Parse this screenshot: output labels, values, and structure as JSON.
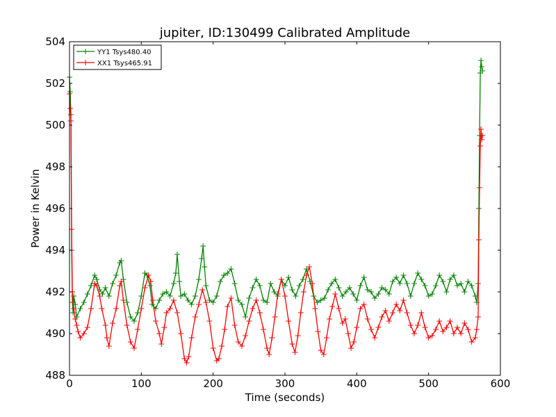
{
  "chart_data": {
    "type": "line",
    "title": "jupiter, ID:130499 Calibrated Amplitude",
    "xlabel": "Time (seconds)",
    "ylabel": "Power in Kelvin",
    "xlim": [
      0,
      600
    ],
    "ylim": [
      488,
      504
    ],
    "xticks": [
      0,
      100,
      200,
      300,
      400,
      500,
      600
    ],
    "yticks": [
      488,
      490,
      492,
      494,
      496,
      498,
      500,
      502,
      504
    ],
    "grid": false,
    "legend_position": "top-left",
    "marker": "+",
    "series": [
      {
        "name": "YY1 Tsys480.40",
        "color": "#008000",
        "points": [
          [
            0,
            502.3
          ],
          [
            1,
            501.6
          ],
          [
            2,
            500.5
          ],
          [
            3,
            494.0
          ],
          [
            4,
            491.5
          ],
          [
            5,
            491.0
          ],
          [
            6,
            491.8
          ],
          [
            8,
            491.4
          ],
          [
            10,
            490.8
          ],
          [
            15,
            491.2
          ],
          [
            20,
            491.5
          ],
          [
            25,
            491.9
          ],
          [
            30,
            492.3
          ],
          [
            35,
            492.8
          ],
          [
            38,
            492.6
          ],
          [
            42,
            492.1
          ],
          [
            46,
            491.9
          ],
          [
            50,
            492.2
          ],
          [
            55,
            491.8
          ],
          [
            60,
            492.4
          ],
          [
            65,
            492.8
          ],
          [
            70,
            493.4
          ],
          [
            72,
            493.5
          ],
          [
            75,
            492.6
          ],
          [
            80,
            491.5
          ],
          [
            85,
            490.8
          ],
          [
            90,
            490.6
          ],
          [
            95,
            491.0
          ],
          [
            100,
            491.8
          ],
          [
            105,
            492.9
          ],
          [
            108,
            492.8
          ],
          [
            112,
            492.3
          ],
          [
            115,
            491.4
          ],
          [
            120,
            491.2
          ],
          [
            125,
            491.6
          ],
          [
            130,
            491.9
          ],
          [
            135,
            492.0
          ],
          [
            140,
            491.8
          ],
          [
            145,
            492.4
          ],
          [
            148,
            492.9
          ],
          [
            150,
            493.8
          ],
          [
            153,
            492.5
          ],
          [
            155,
            491.8
          ],
          [
            160,
            491.9
          ],
          [
            165,
            491.6
          ],
          [
            170,
            491.4
          ],
          [
            175,
            491.8
          ],
          [
            180,
            492.6
          ],
          [
            184,
            493.6
          ],
          [
            186,
            494.2
          ],
          [
            188,
            493.2
          ],
          [
            190,
            492.3
          ],
          [
            195,
            491.6
          ],
          [
            200,
            491.5
          ],
          [
            205,
            491.8
          ],
          [
            210,
            492.5
          ],
          [
            215,
            492.8
          ],
          [
            220,
            492.9
          ],
          [
            225,
            493.1
          ],
          [
            230,
            492.4
          ],
          [
            235,
            491.6
          ],
          [
            240,
            491.4
          ],
          [
            245,
            490.8
          ],
          [
            250,
            491.7
          ],
          [
            255,
            492.2
          ],
          [
            260,
            492.6
          ],
          [
            265,
            492.3
          ],
          [
            270,
            491.6
          ],
          [
            275,
            491.5
          ],
          [
            280,
            492.4
          ],
          [
            285,
            492.0
          ],
          [
            290,
            491.8
          ],
          [
            295,
            492.6
          ],
          [
            300,
            492.3
          ],
          [
            305,
            492.7
          ],
          [
            310,
            492.1
          ],
          [
            315,
            491.8
          ],
          [
            320,
            492.3
          ],
          [
            325,
            492.6
          ],
          [
            330,
            493.1
          ],
          [
            335,
            492.5
          ],
          [
            340,
            491.8
          ],
          [
            345,
            491.5
          ],
          [
            350,
            491.6
          ],
          [
            355,
            491.7
          ],
          [
            360,
            492.1
          ],
          [
            365,
            492.4
          ],
          [
            370,
            492.6
          ],
          [
            375,
            492.2
          ],
          [
            380,
            491.8
          ],
          [
            385,
            492.0
          ],
          [
            390,
            492.2
          ],
          [
            395,
            491.9
          ],
          [
            400,
            491.6
          ],
          [
            405,
            492.3
          ],
          [
            410,
            492.7
          ],
          [
            415,
            492.1
          ],
          [
            420,
            492.0
          ],
          [
            425,
            491.7
          ],
          [
            430,
            491.9
          ],
          [
            435,
            492.2
          ],
          [
            440,
            492.1
          ],
          [
            445,
            491.9
          ],
          [
            450,
            492.5
          ],
          [
            455,
            492.7
          ],
          [
            460,
            492.4
          ],
          [
            465,
            492.8
          ],
          [
            470,
            492.4
          ],
          [
            475,
            491.8
          ],
          [
            480,
            492.4
          ],
          [
            485,
            492.9
          ],
          [
            490,
            492.6
          ],
          [
            495,
            492.3
          ],
          [
            500,
            491.8
          ],
          [
            505,
            491.9
          ],
          [
            510,
            492.3
          ],
          [
            515,
            492.8
          ],
          [
            520,
            492.5
          ],
          [
            525,
            492.0
          ],
          [
            530,
            492.6
          ],
          [
            535,
            492.8
          ],
          [
            540,
            492.3
          ],
          [
            545,
            492.4
          ],
          [
            550,
            492.0
          ],
          [
            555,
            492.5
          ],
          [
            560,
            492.3
          ],
          [
            565,
            491.8
          ],
          [
            567,
            491.5
          ],
          [
            569,
            492.4
          ],
          [
            570,
            496.0
          ],
          [
            571,
            499.5
          ],
          [
            572,
            502.5
          ],
          [
            573,
            503.1
          ],
          [
            574,
            502.8
          ],
          [
            575,
            502.6
          ]
        ]
      },
      {
        "name": "XX1 Tsys465.91",
        "color": "#ff0000",
        "points": [
          [
            0,
            501.5
          ],
          [
            1,
            500.8
          ],
          [
            2,
            500.2
          ],
          [
            3,
            495.0
          ],
          [
            4,
            492.0
          ],
          [
            5,
            491.5
          ],
          [
            6,
            491.2
          ],
          [
            8,
            490.7
          ],
          [
            10,
            490.4
          ],
          [
            12,
            490.1
          ],
          [
            15,
            489.8
          ],
          [
            20,
            490.0
          ],
          [
            25,
            490.3
          ],
          [
            30,
            491.2
          ],
          [
            35,
            492.4
          ],
          [
            38,
            492.3
          ],
          [
            42,
            491.8
          ],
          [
            45,
            491.2
          ],
          [
            50,
            490.4
          ],
          [
            52,
            489.8
          ],
          [
            55,
            489.4
          ],
          [
            60,
            490.5
          ],
          [
            65,
            491.2
          ],
          [
            70,
            492.3
          ],
          [
            72,
            492.5
          ],
          [
            75,
            491.6
          ],
          [
            80,
            490.4
          ],
          [
            85,
            489.6
          ],
          [
            90,
            489.3
          ],
          [
            95,
            490.2
          ],
          [
            100,
            491.2
          ],
          [
            105,
            492.2
          ],
          [
            110,
            492.8
          ],
          [
            113,
            492.5
          ],
          [
            116,
            491.6
          ],
          [
            120,
            490.6
          ],
          [
            125,
            490.0
          ],
          [
            128,
            489.5
          ],
          [
            132,
            490.3
          ],
          [
            135,
            491.0
          ],
          [
            140,
            491.2
          ],
          [
            145,
            491.6
          ],
          [
            150,
            491.0
          ],
          [
            155,
            490.0
          ],
          [
            160,
            488.8
          ],
          [
            163,
            488.6
          ],
          [
            166,
            488.9
          ],
          [
            170,
            489.8
          ],
          [
            175,
            490.8
          ],
          [
            180,
            491.4
          ],
          [
            185,
            492.1
          ],
          [
            190,
            491.5
          ],
          [
            195,
            490.6
          ],
          [
            200,
            489.3
          ],
          [
            205,
            488.7
          ],
          [
            208,
            488.8
          ],
          [
            212,
            489.4
          ],
          [
            216,
            490.2
          ],
          [
            220,
            491.3
          ],
          [
            225,
            491.7
          ],
          [
            230,
            490.4
          ],
          [
            235,
            489.6
          ],
          [
            240,
            489.4
          ],
          [
            245,
            489.9
          ],
          [
            250,
            490.6
          ],
          [
            255,
            491.2
          ],
          [
            260,
            491.6
          ],
          [
            265,
            491.0
          ],
          [
            270,
            490.2
          ],
          [
            275,
            489.3
          ],
          [
            278,
            489.0
          ],
          [
            282,
            489.8
          ],
          [
            286,
            490.8
          ],
          [
            290,
            491.9
          ],
          [
            295,
            492.6
          ],
          [
            300,
            491.8
          ],
          [
            305,
            490.6
          ],
          [
            310,
            489.5
          ],
          [
            314,
            489.1
          ],
          [
            318,
            489.9
          ],
          [
            322,
            491.0
          ],
          [
            326,
            492.0
          ],
          [
            330,
            492.8
          ],
          [
            334,
            493.2
          ],
          [
            338,
            492.4
          ],
          [
            342,
            491.2
          ],
          [
            346,
            490.1
          ],
          [
            350,
            489.2
          ],
          [
            354,
            489.0
          ],
          [
            358,
            489.8
          ],
          [
            362,
            490.7
          ],
          [
            366,
            491.3
          ],
          [
            370,
            491.9
          ],
          [
            375,
            491.2
          ],
          [
            380,
            490.5
          ],
          [
            384,
            490.7
          ],
          [
            388,
            490.0
          ],
          [
            392,
            489.3
          ],
          [
            396,
            489.6
          ],
          [
            400,
            490.3
          ],
          [
            405,
            491.2
          ],
          [
            410,
            491.4
          ],
          [
            415,
            490.7
          ],
          [
            420,
            490.2
          ],
          [
            425,
            489.8
          ],
          [
            430,
            490.3
          ],
          [
            435,
            490.8
          ],
          [
            440,
            491.1
          ],
          [
            445,
            490.6
          ],
          [
            450,
            491.0
          ],
          [
            455,
            491.4
          ],
          [
            460,
            491.1
          ],
          [
            465,
            491.6
          ],
          [
            470,
            491.0
          ],
          [
            475,
            490.4
          ],
          [
            480,
            490.0
          ],
          [
            485,
            490.4
          ],
          [
            490,
            491.0
          ],
          [
            495,
            490.3
          ],
          [
            500,
            489.8
          ],
          [
            505,
            489.9
          ],
          [
            510,
            490.2
          ],
          [
            515,
            490.6
          ],
          [
            520,
            490.1
          ],
          [
            525,
            490.3
          ],
          [
            530,
            490.6
          ],
          [
            535,
            490.0
          ],
          [
            540,
            490.3
          ],
          [
            545,
            490.0
          ],
          [
            550,
            490.5
          ],
          [
            555,
            490.2
          ],
          [
            560,
            489.6
          ],
          [
            565,
            489.8
          ],
          [
            567,
            490.2
          ],
          [
            569,
            490.8
          ],
          [
            570,
            494.5
          ],
          [
            571,
            497.0
          ],
          [
            572,
            499.0
          ],
          [
            573,
            499.8
          ],
          [
            574,
            499.3
          ],
          [
            575,
            499.5
          ]
        ]
      }
    ]
  }
}
